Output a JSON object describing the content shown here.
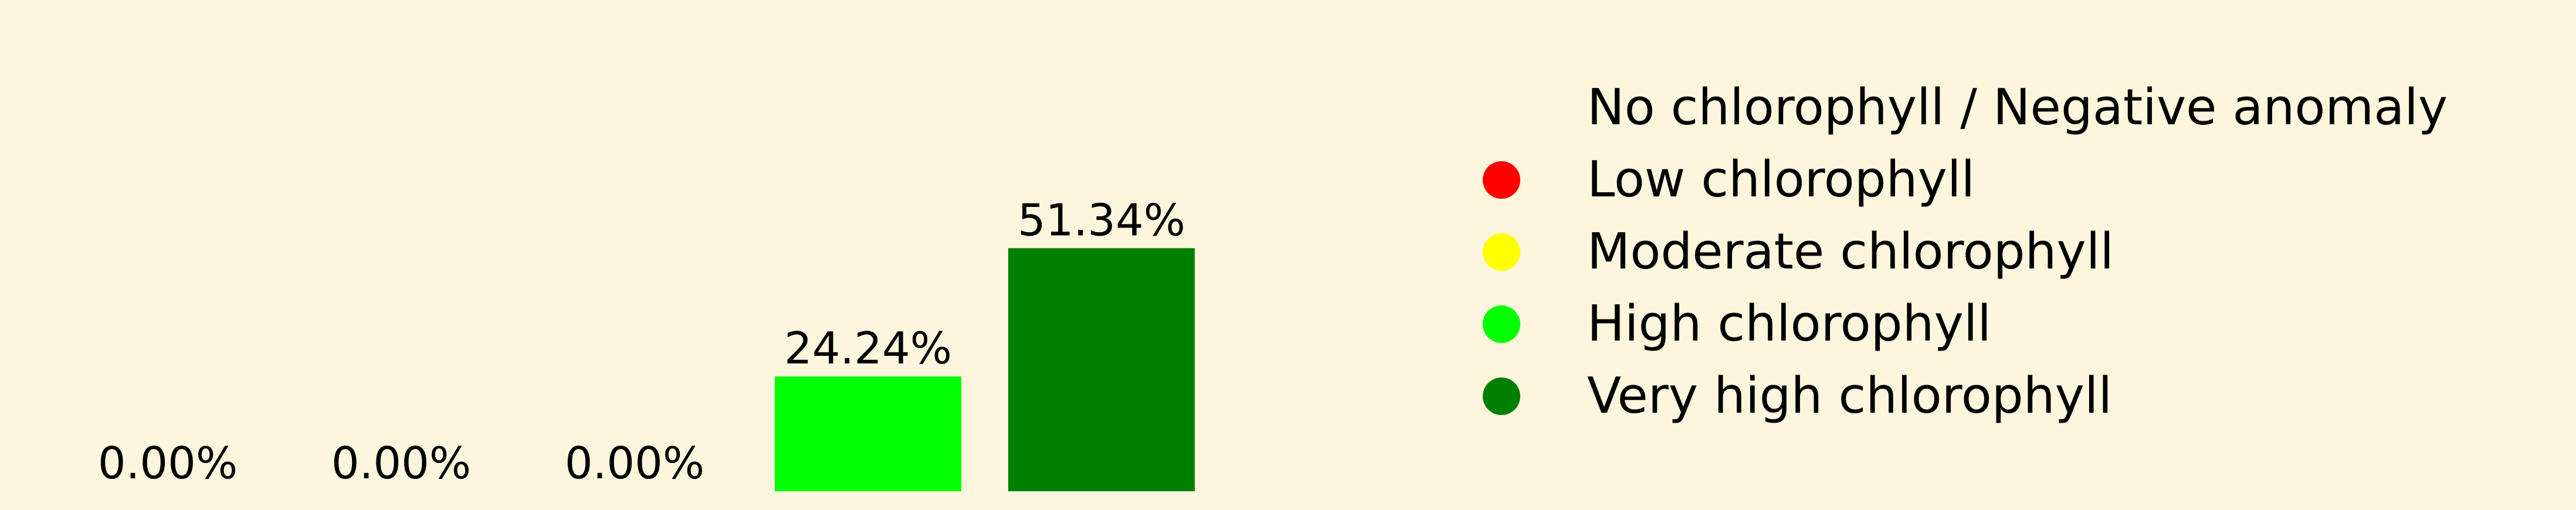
{
  "chart_data": {
    "type": "bar",
    "categories": [
      "No chlorophyll / Negative anomaly",
      "Low chlorophyll",
      "Moderate chlorophyll",
      "High chlorophyll",
      "Very high chlorophyll"
    ],
    "values": [
      0.0,
      0.0,
      0.0,
      24.24,
      51.34
    ],
    "data_labels": [
      "0.00%",
      "0.00%",
      "0.00%",
      "24.24%",
      "51.34%"
    ],
    "colors": [
      "#fdf6dc",
      "#ff0000",
      "#ffff00",
      "#00ff00",
      "#008000"
    ],
    "title": "",
    "xlabel": "",
    "ylabel": "",
    "ylim": [
      0,
      70
    ],
    "grid": false,
    "axes_visible": false,
    "legend_placement": "right"
  }
}
